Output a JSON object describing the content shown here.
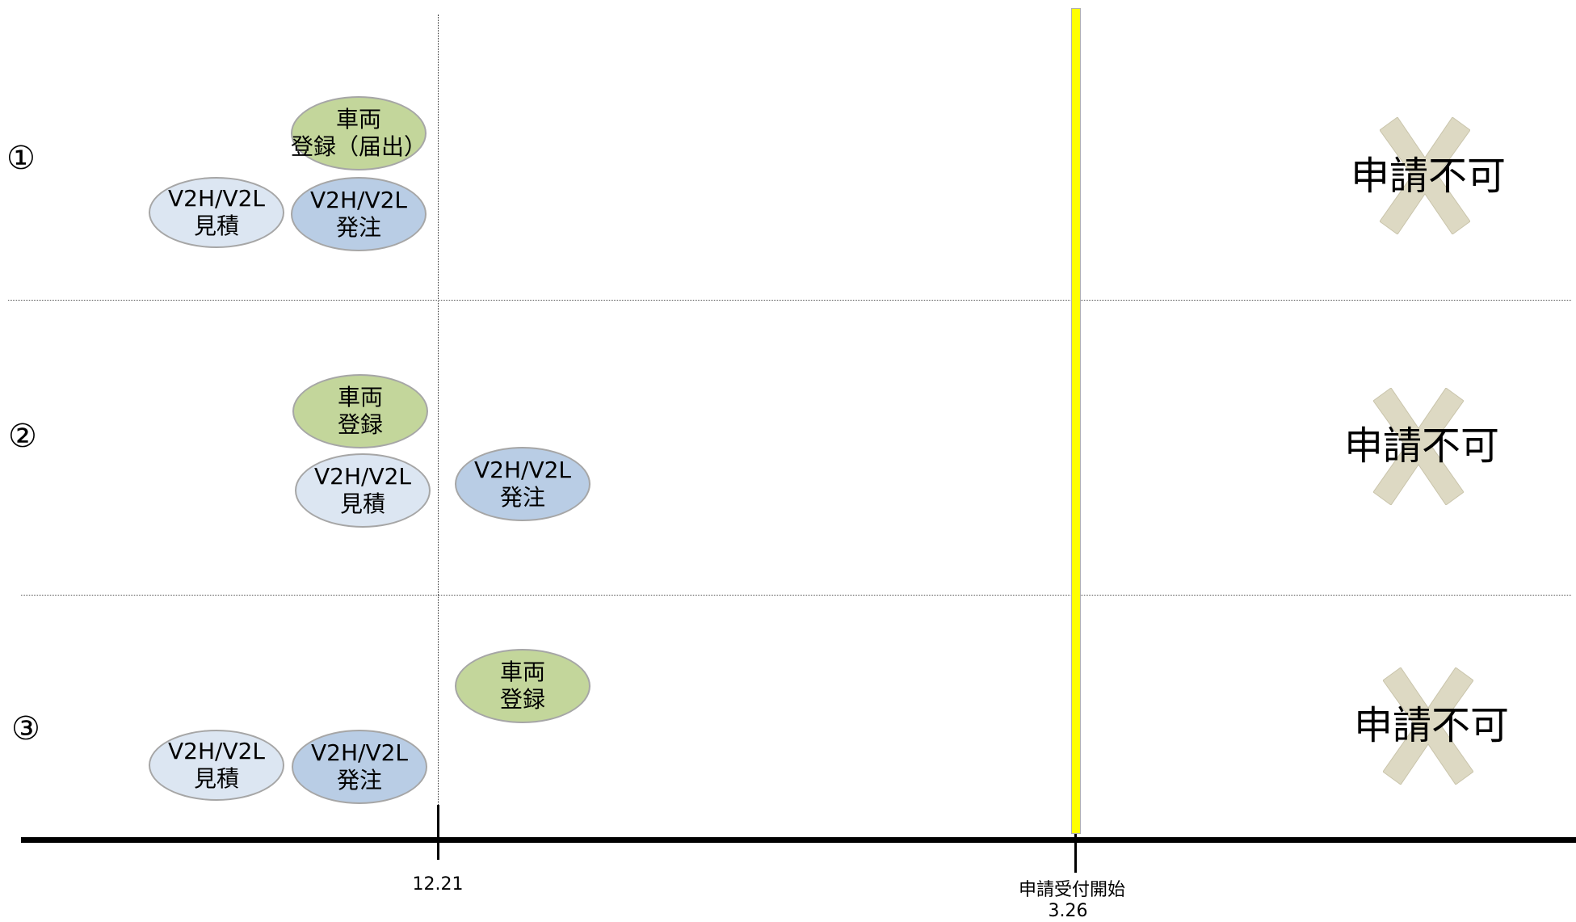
{
  "rows": [
    {
      "label": "①",
      "verdict": "申請不可",
      "items": [
        {
          "line1": "車両",
          "line2": "登録（届出）"
        },
        {
          "line1": "V2H/V2L",
          "line2": "見積"
        },
        {
          "line1": "V2H/V2L",
          "line2": "発注"
        }
      ]
    },
    {
      "label": "②",
      "verdict": "申請不可",
      "items": [
        {
          "line1": "車両",
          "line2": "登録"
        },
        {
          "line1": "V2H/V2L",
          "line2": "見積"
        },
        {
          "line1": "V2H/V2L",
          "line2": "発注"
        }
      ]
    },
    {
      "label": "③",
      "verdict": "申請不可",
      "items": [
        {
          "line1": "車両",
          "line2": "登録"
        },
        {
          "line1": "V2H/V2L",
          "line2": "見積"
        },
        {
          "line1": "V2H/V2L",
          "line2": "発注"
        }
      ]
    }
  ],
  "timeline": {
    "date1_label": "12.21",
    "date2_caption": "申請受付開始",
    "date2_label": "3.26"
  },
  "colors": {
    "vehicle_registration": "#c3d69b",
    "estimate": "#dce6f2",
    "order": "#b9cde5",
    "application_start_bar": "#ffff00",
    "cross_mark": "#ddd9c3"
  },
  "icons": [
    "x-cross-icon"
  ]
}
